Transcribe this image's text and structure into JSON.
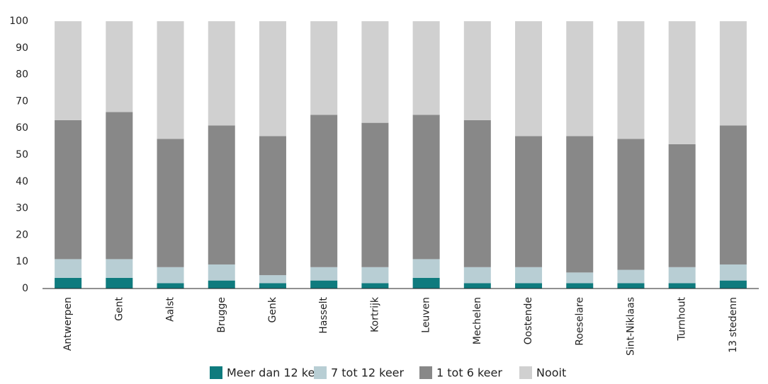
{
  "chart_data": {
    "type": "stacked_bar",
    "categories": [
      "Antwerpen",
      "Gent",
      "Aalst",
      "Brugge",
      "Genk",
      "Hasselt",
      "Kortrijk",
      "Leuven",
      "Mechelen",
      "Oostende",
      "Roeselare",
      "Sint-Niklaas",
      "Turnhout",
      "13 stedenn"
    ],
    "series": [
      {
        "name": "Meer dan 12 keer",
        "color": "#0f7b7e",
        "values": [
          4,
          4,
          2,
          3,
          2,
          3,
          2,
          4,
          2,
          2,
          2,
          2,
          2,
          3
        ]
      },
      {
        "name": "7 tot 12 keer",
        "color": "#b8ced4",
        "values": [
          7,
          7,
          6,
          6,
          3,
          5,
          6,
          7,
          6,
          6,
          4,
          5,
          6,
          6
        ]
      },
      {
        "name": "1 tot 6 keer",
        "color": "#888888",
        "values": [
          52,
          55,
          48,
          52,
          52,
          57,
          54,
          54,
          55,
          49,
          51,
          49,
          46,
          52
        ]
      },
      {
        "name": "Nooit",
        "color": "#d0d0d0",
        "values": [
          37,
          34,
          44,
          39,
          43,
          35,
          38,
          35,
          37,
          43,
          43,
          44,
          46,
          39
        ]
      }
    ],
    "ylim": [
      0,
      100
    ],
    "yticks": [
      0,
      10,
      20,
      30,
      40,
      50,
      60,
      70,
      80,
      90,
      100
    ],
    "grid": false,
    "legend": "bottom"
  }
}
